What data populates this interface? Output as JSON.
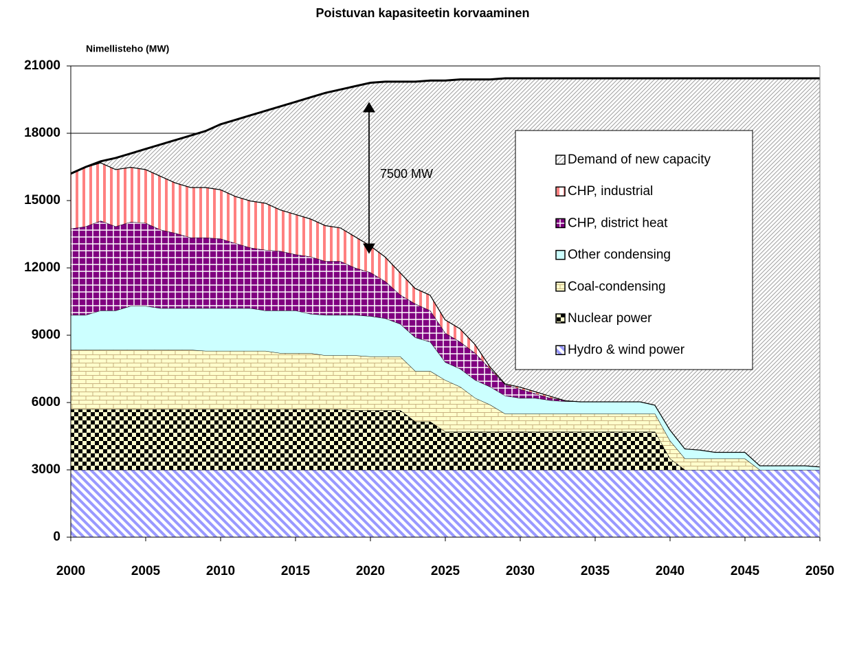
{
  "chart_data": {
    "type": "stacked_area",
    "title": "Poistuvan kapasiteetin korvaaminen",
    "y_label": "Nimellisteho (MW)",
    "annotation": "7500 MW",
    "x": [
      2000,
      2001,
      2002,
      2003,
      2004,
      2005,
      2006,
      2007,
      2008,
      2009,
      2010,
      2011,
      2012,
      2013,
      2014,
      2015,
      2016,
      2017,
      2018,
      2019,
      2020,
      2021,
      2022,
      2023,
      2024,
      2025,
      2026,
      2027,
      2028,
      2029,
      2030,
      2031,
      2032,
      2033,
      2034,
      2035,
      2036,
      2037,
      2038,
      2039,
      2040,
      2041,
      2042,
      2043,
      2044,
      2045,
      2046,
      2047,
      2048,
      2049,
      2050
    ],
    "xlim": [
      2000,
      2050
    ],
    "xticks": [
      2000,
      2005,
      2010,
      2015,
      2020,
      2025,
      2030,
      2035,
      2040,
      2045,
      2050
    ],
    "ylim": [
      0,
      21000
    ],
    "yticks": [
      0,
      3000,
      6000,
      9000,
      12000,
      15000,
      18000,
      21000
    ],
    "grid": true,
    "legend": "upper right",
    "series": [
      {
        "name": "Hydro & wind power",
        "color": "#9999ff",
        "pattern": "diagonal",
        "values": [
          3000,
          3000,
          3000,
          3000,
          3000,
          3000,
          3000,
          3000,
          3000,
          3000,
          3000,
          3000,
          3000,
          3000,
          3000,
          3000,
          3000,
          3000,
          3000,
          3000,
          3000,
          3000,
          3000,
          3000,
          3000,
          3000,
          3000,
          3000,
          3000,
          3000,
          3000,
          3000,
          3000,
          3000,
          3000,
          3000,
          3000,
          3000,
          3000,
          3000,
          3000,
          3000,
          3000,
          3000,
          3000,
          3000,
          3000,
          3000,
          3000,
          3000,
          3000
        ]
      },
      {
        "name": "Nuclear power",
        "color": "#000000",
        "pattern": "checker",
        "values": [
          2700,
          2700,
          2700,
          2700,
          2700,
          2700,
          2700,
          2700,
          2700,
          2700,
          2700,
          2700,
          2700,
          2700,
          2700,
          2700,
          2700,
          2700,
          2700,
          2650,
          2650,
          2650,
          2650,
          2150,
          2150,
          1700,
          1700,
          1700,
          1700,
          1700,
          1700,
          1700,
          1700,
          1700,
          1700,
          1700,
          1700,
          1700,
          1700,
          1700,
          500,
          0,
          0,
          0,
          0,
          0,
          0,
          0,
          0,
          0,
          0
        ]
      },
      {
        "name": "Coal-condensing",
        "color": "#ffffcc",
        "pattern": "brick",
        "values": [
          2650,
          2650,
          2650,
          2650,
          2650,
          2650,
          2650,
          2650,
          2650,
          2600,
          2600,
          2600,
          2600,
          2600,
          2500,
          2500,
          2500,
          2400,
          2400,
          2450,
          2400,
          2400,
          2400,
          2250,
          2250,
          2300,
          2000,
          1500,
          1200,
          800,
          800,
          800,
          800,
          800,
          800,
          800,
          800,
          800,
          800,
          800,
          800,
          500,
          500,
          500,
          500,
          500,
          0,
          0,
          0,
          0,
          0
        ]
      },
      {
        "name": "Other condensing",
        "color": "#ccffff",
        "pattern": "solid",
        "values": [
          1550,
          1550,
          1750,
          1750,
          1950,
          1950,
          1850,
          1850,
          1850,
          1900,
          1900,
          1900,
          1900,
          1800,
          1900,
          1900,
          1750,
          1800,
          1800,
          1800,
          1800,
          1700,
          1450,
          1500,
          1300,
          800,
          800,
          800,
          800,
          800,
          700,
          700,
          600,
          550,
          550,
          550,
          550,
          550,
          550,
          400,
          500,
          450,
          400,
          300,
          300,
          300,
          200,
          200,
          200,
          200,
          150
        ]
      },
      {
        "name": "CHP, district heat",
        "color": "#800080",
        "pattern": "grid",
        "values": [
          3850,
          3950,
          4000,
          3750,
          3750,
          3700,
          3500,
          3350,
          3150,
          3150,
          3100,
          2900,
          2700,
          2700,
          2650,
          2500,
          2550,
          2400,
          2400,
          2100,
          1950,
          1650,
          1300,
          1500,
          1400,
          1300,
          1200,
          1200,
          800,
          500,
          400,
          200,
          100,
          50,
          0,
          0,
          0,
          0,
          0,
          0,
          0,
          0,
          0,
          0,
          0,
          0,
          0,
          0,
          0,
          0,
          0
        ]
      },
      {
        "name": "CHP, industrial",
        "color": "#ff8080",
        "pattern": "vertical",
        "values": [
          2450,
          2650,
          2600,
          2550,
          2450,
          2400,
          2400,
          2250,
          2250,
          2250,
          2200,
          2100,
          2100,
          2100,
          1850,
          1800,
          1700,
          1600,
          1500,
          1400,
          1200,
          1100,
          1000,
          700,
          700,
          600,
          600,
          400,
          100,
          50,
          100,
          100,
          100,
          0,
          0,
          0,
          0,
          0,
          0,
          0,
          0,
          0,
          0,
          0,
          0,
          0,
          0,
          0,
          0,
          0,
          0
        ]
      },
      {
        "name": "Demand of new capacity",
        "color": "#a0a0a0",
        "pattern": "hatch",
        "values": [
          0,
          0,
          50,
          500,
          600,
          900,
          1400,
          1900,
          2300,
          2500,
          2900,
          3400,
          3800,
          4100,
          4600,
          5000,
          5400,
          5900,
          6150,
          6700,
          7250,
          7800,
          8500,
          9200,
          9550,
          10650,
          11100,
          11800,
          12800,
          13600,
          13750,
          13950,
          14150,
          14350,
          14400,
          14400,
          14400,
          14400,
          14400,
          14550,
          15650,
          16500,
          16550,
          16650,
          16650,
          16650,
          17250,
          17250,
          17250,
          17250,
          17300
        ]
      }
    ]
  }
}
